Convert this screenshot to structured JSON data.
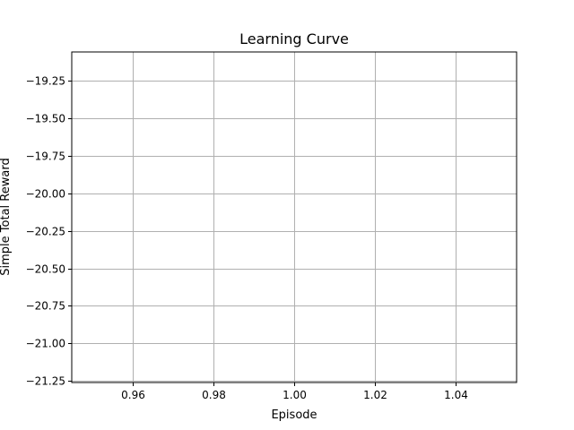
{
  "chart_data": {
    "type": "line",
    "title": "Learning Curve",
    "xlabel": "Episode",
    "ylabel": "Simple Total Reward",
    "xlim": [
      0.945,
      1.055
    ],
    "ylim": [
      -21.26,
      -19.06
    ],
    "x_ticks": [
      0.96,
      0.98,
      1.0,
      1.02,
      1.04
    ],
    "x_tick_labels": [
      "0.96",
      "0.98",
      "1.00",
      "1.02",
      "1.04"
    ],
    "y_ticks": [
      -19.25,
      -19.5,
      -19.75,
      -20.0,
      -20.25,
      -20.5,
      -20.75,
      -21.0,
      -21.25
    ],
    "y_tick_labels": [
      "−19.25",
      "−19.50",
      "−19.75",
      "−20.00",
      "−20.25",
      "−20.50",
      "−20.75",
      "−21.00",
      "−21.25"
    ],
    "grid": true,
    "series": [
      {
        "x": [],
        "y": []
      }
    ],
    "colors": {
      "grid": "#b0b0b0",
      "axes": "#000000",
      "line": "#1f77b4"
    }
  }
}
